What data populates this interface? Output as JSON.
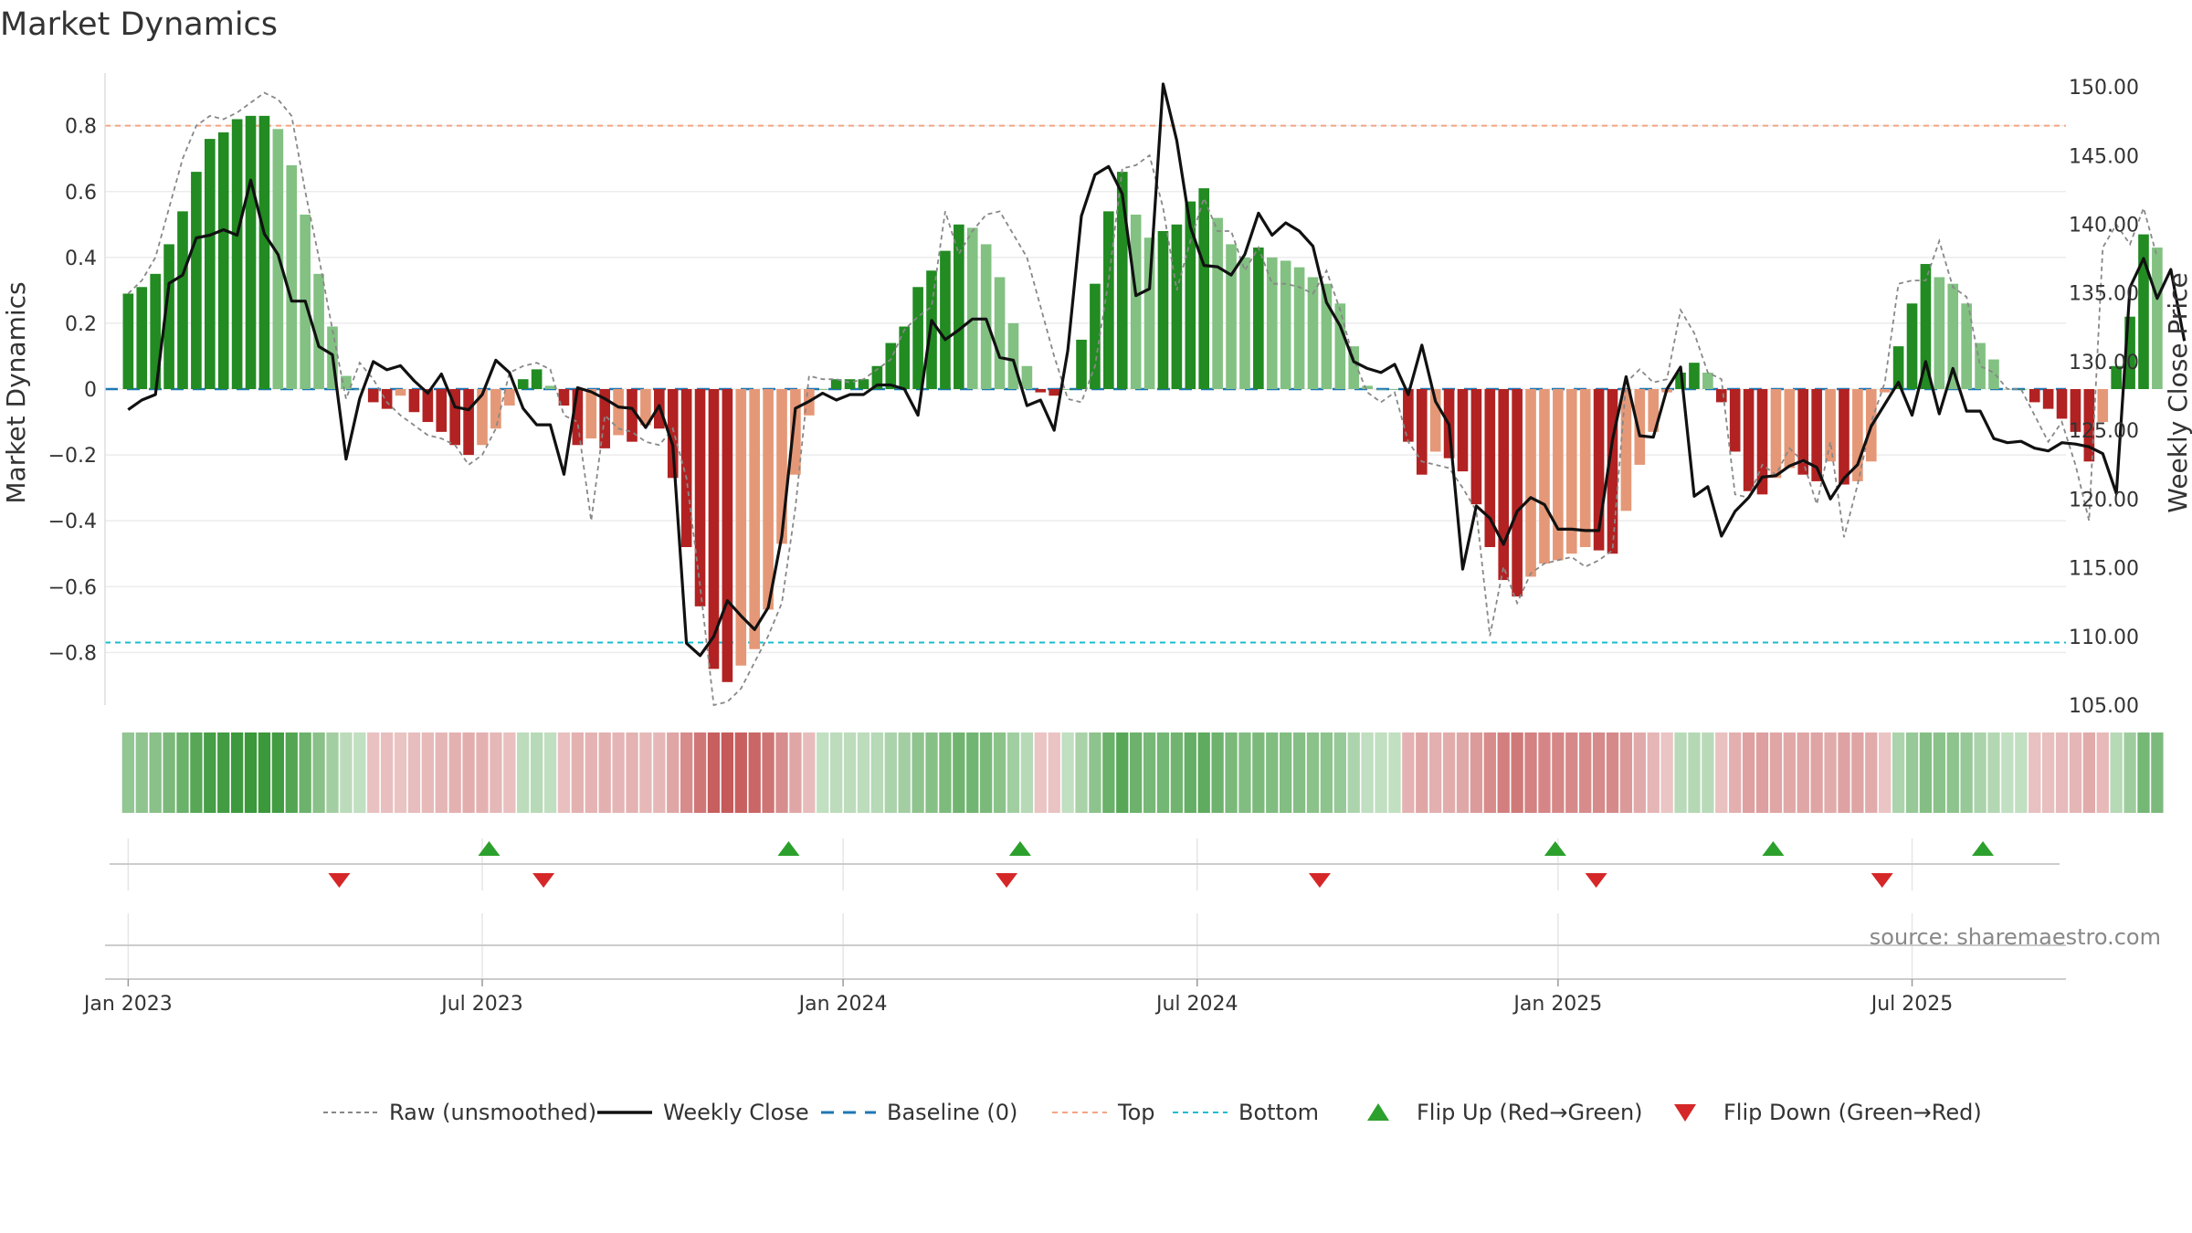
{
  "title": "Market Dynamics",
  "source": "source: sharemaestro.com",
  "colors": {
    "green_strong": "#228B22",
    "green_light": "#82C182",
    "red_strong": "#B22222",
    "red_light": "#E59877",
    "close_line": "#111111",
    "raw_line": "#888888",
    "baseline": "#1F77B4",
    "top": "#F4A582",
    "bottom": "#17BECF",
    "flip_up": "#2CA02C",
    "flip_down": "#D62728"
  },
  "legend": [
    {
      "key": "raw",
      "label": "Raw (unsmoothed)"
    },
    {
      "key": "close",
      "label": "Weekly Close"
    },
    {
      "key": "baseline",
      "label": "Baseline (0)"
    },
    {
      "key": "top",
      "label": "Top"
    },
    {
      "key": "bottom",
      "label": "Bottom"
    },
    {
      "key": "flipup",
      "label": "Flip Up (Red→Green)"
    },
    {
      "key": "flipdown",
      "label": "Flip Down (Green→Red)"
    }
  ],
  "chart_data": {
    "type": "bar",
    "title": "Market Dynamics",
    "ylabel_left": "Market Dynamics",
    "ylabel_right": "Weekly Close Price",
    "ylim_left": [
      -0.96,
      0.96
    ],
    "ylim_right": [
      105,
      151
    ],
    "yticks_left": [
      {
        "v": 0.8,
        "label": "0.8"
      },
      {
        "v": 0.6,
        "label": "0.6"
      },
      {
        "v": 0.4,
        "label": "0.4"
      },
      {
        "v": 0.2,
        "label": "0.2"
      },
      {
        "v": 0.0,
        "label": "0"
      },
      {
        "v": -0.2,
        "label": "−0.2"
      },
      {
        "v": -0.4,
        "label": "−0.4"
      },
      {
        "v": -0.6,
        "label": "−0.6"
      },
      {
        "v": -0.8,
        "label": "−0.8"
      }
    ],
    "yticks_right": [
      {
        "v": 150,
        "label": "150.00"
      },
      {
        "v": 145,
        "label": "145.00"
      },
      {
        "v": 140,
        "label": "140.00"
      },
      {
        "v": 135,
        "label": "135.00"
      },
      {
        "v": 130,
        "label": "130.00"
      },
      {
        "v": 125,
        "label": "125.00"
      },
      {
        "v": 120,
        "label": "120.00"
      },
      {
        "v": 115,
        "label": "115.00"
      },
      {
        "v": 110,
        "label": "110.00"
      },
      {
        "v": 105,
        "label": "105.00"
      }
    ],
    "xticks": [
      {
        "week": 0,
        "label": "Jan 2023"
      },
      {
        "week": 26,
        "label": "Jul 2023"
      },
      {
        "week": 52.5,
        "label": "Jan 2024"
      },
      {
        "week": 78.5,
        "label": "Jul 2024"
      },
      {
        "week": 105,
        "label": "Jan 2025"
      },
      {
        "week": 131,
        "label": "Jul 2025"
      }
    ],
    "x_range_weeks": [
      -1.7,
      142.3
    ],
    "top_level": 0.8,
    "bottom_level": -0.77,
    "baseline": 0,
    "dynamics": [
      0.29,
      0.31,
      0.35,
      0.44,
      0.54,
      0.66,
      0.76,
      0.78,
      0.82,
      0.83,
      0.83,
      0.79,
      0.68,
      0.53,
      0.35,
      0.19,
      0.04,
      0,
      -0.04,
      -0.06,
      -0.02,
      -0.07,
      -0.1,
      -0.13,
      -0.17,
      -0.2,
      -0.17,
      -0.12,
      -0.05,
      0.03,
      0.06,
      0.01,
      -0.05,
      -0.17,
      -0.15,
      -0.18,
      -0.14,
      -0.16,
      -0.11,
      -0.12,
      -0.27,
      -0.48,
      -0.66,
      -0.85,
      -0.89,
      -0.84,
      -0.79,
      -0.67,
      -0.47,
      -0.26,
      -0.08,
      0,
      0.03,
      0.03,
      0.03,
      0.07,
      0.14,
      0.19,
      0.31,
      0.36,
      0.42,
      0.5,
      0.49,
      0.44,
      0.34,
      0.2,
      0.07,
      -0.01,
      -0.02,
      0,
      0.15,
      0.32,
      0.54,
      0.66,
      0.53,
      0.46,
      0.48,
      0.5,
      0.57,
      0.61,
      0.52,
      0.44,
      0.4,
      0.43,
      0.4,
      0.39,
      0.37,
      0.34,
      0.32,
      0.26,
      0.13,
      0.01,
      0,
      0,
      -0.16,
      -0.26,
      -0.19,
      -0.21,
      -0.25,
      -0.35,
      -0.48,
      -0.58,
      -0.63,
      -0.57,
      -0.53,
      -0.52,
      -0.5,
      -0.48,
      -0.49,
      -0.5,
      -0.37,
      -0.23,
      -0.13,
      -0.01,
      0.05,
      0.08,
      0.05,
      -0.04,
      -0.19,
      -0.31,
      -0.32,
      -0.27,
      -0.24,
      -0.26,
      -0.28,
      -0.22,
      -0.29,
      -0.28,
      -0.22,
      -0.01,
      0.13,
      0.26,
      0.38,
      0.34,
      0.32,
      0.26,
      0.14,
      0.09,
      0,
      0,
      -0.04,
      -0.06,
      -0.09,
      -0.13,
      -0.22,
      -0.1,
      0.07,
      0.22,
      0.47,
      0.43
    ],
    "raw": [
      0.29,
      0.33,
      0.4,
      0.55,
      0.7,
      0.8,
      0.83,
      0.82,
      0.84,
      0.87,
      0.9,
      0.88,
      0.83,
      0.6,
      0.4,
      0.18,
      -0.03,
      0.08,
      0.03,
      -0.04,
      -0.08,
      -0.11,
      -0.14,
      -0.15,
      -0.17,
      -0.23,
      -0.2,
      -0.12,
      0.05,
      0.07,
      0.08,
      0.06,
      -0.08,
      -0.1,
      -0.4,
      -0.08,
      -0.12,
      -0.13,
      -0.16,
      -0.17,
      -0.12,
      -0.27,
      -0.6,
      -0.96,
      -0.95,
      -0.91,
      -0.83,
      -0.75,
      -0.65,
      -0.36,
      0.04,
      0.03,
      0.03,
      0.02,
      0.03,
      0.06,
      0.09,
      0.18,
      0.22,
      0.25,
      0.54,
      0.41,
      0.48,
      0.53,
      0.54,
      0.47,
      0.4,
      0.25,
      0.1,
      -0.03,
      -0.04,
      0.07,
      0.33,
      0.67,
      0.68,
      0.71,
      0.55,
      0.3,
      0.45,
      0.58,
      0.48,
      0.48,
      0.36,
      0.43,
      0.32,
      0.32,
      0.31,
      0.29,
      0.36,
      0.24,
      0.09,
      -0.01,
      -0.04,
      -0.01,
      -0.16,
      -0.22,
      -0.23,
      -0.24,
      -0.3,
      -0.37,
      -0.75,
      -0.54,
      -0.65,
      -0.56,
      -0.53,
      -0.52,
      -0.51,
      -0.54,
      -0.52,
      -0.49,
      0.02,
      0.06,
      0.02,
      0.03,
      0.24,
      0.17,
      0.05,
      0.03,
      -0.32,
      -0.33,
      -0.23,
      -0.26,
      -0.18,
      -0.22,
      -0.35,
      -0.16,
      -0.45,
      -0.29,
      -0.1,
      0.02,
      0.32,
      0.33,
      0.33,
      0.45,
      0.31,
      0.28,
      0.07,
      0.05,
      0.0,
      0.0,
      -0.08,
      -0.16,
      -0.1,
      -0.23,
      -0.4,
      0.43,
      0.5,
      0.44,
      0.55,
      0.4
    ],
    "close": [
      126.5,
      127.2,
      127.6,
      135.7,
      136.3,
      139.0,
      139.2,
      139.6,
      139.2,
      143.2,
      139.3,
      137.8,
      134.4,
      134.4,
      131.1,
      130.5,
      122.9,
      127.3,
      130.0,
      129.4,
      129.7,
      128.6,
      127.7,
      129.1,
      126.7,
      126.5,
      127.6,
      130.1,
      129.2,
      126.6,
      125.4,
      125.4,
      121.8,
      128.1,
      127.8,
      127.3,
      126.7,
      126.6,
      125.2,
      126.8,
      123.9,
      109.5,
      108.6,
      110.0,
      112.6,
      111.5,
      110.5,
      112.1,
      117.3,
      126.6,
      127.1,
      127.7,
      127.2,
      127.6,
      127.6,
      128.3,
      128.3,
      128.0,
      126.1,
      133.0,
      131.6,
      132.3,
      133.1,
      133.1,
      130.3,
      130.1,
      126.8,
      127.2,
      125.0,
      130.8,
      140.6,
      143.6,
      144.2,
      142.2,
      134.8,
      135.3,
      150.2,
      146.1,
      139.8,
      137.0,
      136.9,
      136.3,
      137.8,
      140.8,
      139.2,
      140.1,
      139.5,
      138.4,
      134.3,
      132.6,
      130.0,
      129.5,
      129.2,
      129.8,
      127.6,
      131.2,
      127.1,
      125.4,
      114.9,
      119.5,
      118.6,
      116.7,
      119.1,
      120.1,
      119.6,
      117.8,
      117.8,
      117.7,
      117.7,
      124.3,
      128.9,
      124.6,
      124.5,
      128.0,
      129.6,
      120.2,
      120.9,
      117.3,
      119.1,
      120.1,
      121.6,
      121.7,
      122.4,
      122.8,
      122.3,
      120.0,
      121.5,
      122.5,
      125.3,
      126.9,
      128.5,
      126.1,
      130.0,
      126.2,
      129.5,
      126.4,
      126.4,
      124.4,
      124.1,
      124.2,
      123.7,
      123.5,
      124.1,
      124.0,
      123.8,
      123.3,
      120.4,
      135.4,
      137.5,
      134.6,
      136.7,
      131.5
    ],
    "flip_up_weeks": [
      26.5,
      48.5,
      65.5,
      104.8,
      120.8,
      136.2
    ],
    "flip_down_weeks": [
      15.5,
      30.5,
      64.5,
      87.5,
      107.8,
      128.8
    ]
  }
}
